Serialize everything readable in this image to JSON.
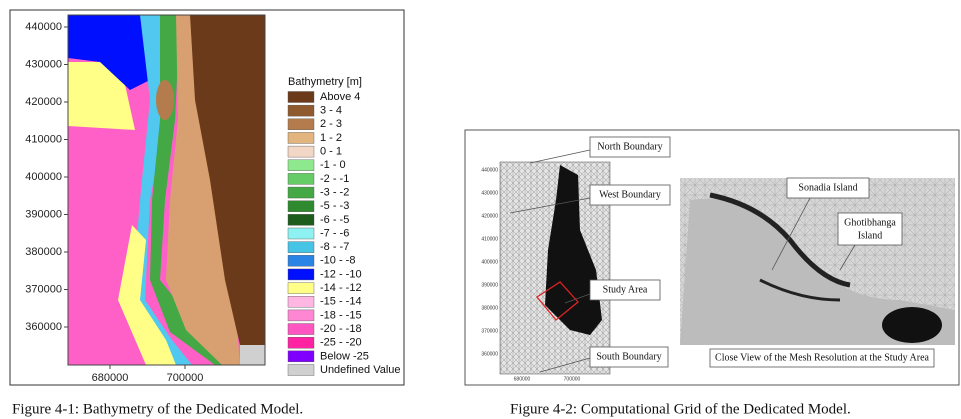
{
  "figure_1": {
    "y_ticks": [
      440000,
      430000,
      420000,
      410000,
      400000,
      390000,
      380000,
      370000,
      360000
    ],
    "x_ticks": [
      680000,
      700000
    ],
    "legend": {
      "title": "Bathymetry [m]",
      "items": [
        {
          "label": "Above  4",
          "color": "#6b3a1a"
        },
        {
          "label": "3 -  4",
          "color": "#8f5a2e"
        },
        {
          "label": "2 -  3",
          "color": "#b47c4c"
        },
        {
          "label": "1 -  2",
          "color": "#e2b47e"
        },
        {
          "label": "0 -  1",
          "color": "#f2d6c6"
        },
        {
          "label": "-1 -  0",
          "color": "#8ee88e"
        },
        {
          "label": "-2 - -1",
          "color": "#66cc66"
        },
        {
          "label": "-3 - -2",
          "color": "#44a844"
        },
        {
          "label": "-5 - -3",
          "color": "#2f8a2f"
        },
        {
          "label": "-6 - -5",
          "color": "#1d5c1d"
        },
        {
          "label": "-7 - -6",
          "color": "#8ef2f2"
        },
        {
          "label": "-8 - -7",
          "color": "#46c4e6"
        },
        {
          "label": "-10 - -8",
          "color": "#2a84e6"
        },
        {
          "label": "-12 - -10",
          "color": "#0010ff"
        },
        {
          "label": "-14 - -12",
          "color": "#ffff88"
        },
        {
          "label": "-15 - -14",
          "color": "#ffb6e2"
        },
        {
          "label": "-18 - -15",
          "color": "#ff86d2"
        },
        {
          "label": "-20 - -18",
          "color": "#ff56c2"
        },
        {
          "label": "-25 - -20",
          "color": "#ff22a2"
        },
        {
          "label": "Below -25",
          "color": "#8000ff"
        },
        {
          "label": "Undefined Value",
          "color": "#d0d0d0"
        }
      ]
    },
    "caption": "Figure 4-1: Bathymetry of the Dedicated Model."
  },
  "figure_2": {
    "y_ticks": [
      440000,
      430000,
      420000,
      410000,
      400000,
      390000,
      380000,
      370000,
      360000
    ],
    "x_ticks": [
      680000,
      700000
    ],
    "callouts": {
      "north": "North Boundary",
      "west": "West Boundary",
      "study": "Study Area",
      "south": "South Boundary",
      "sonadia": "Sonadia Island",
      "ghotibhanga": [
        "Ghotibhanga",
        "Island"
      ],
      "close_view": "Close View of the Mesh Resolution at the Study Area"
    },
    "caption": "Figure 4-2: Computational Grid of the Dedicated Model."
  }
}
